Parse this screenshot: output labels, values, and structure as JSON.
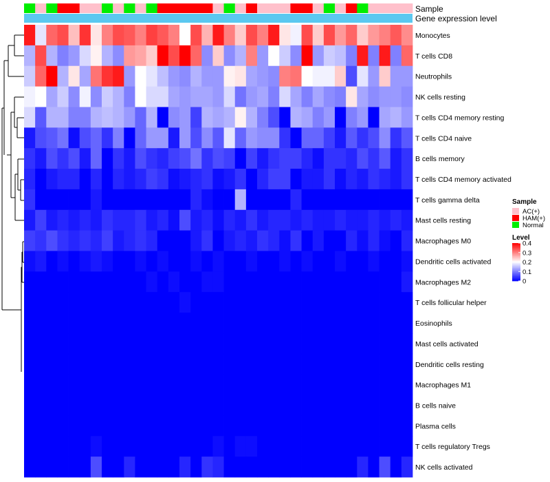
{
  "chart_data": {
    "type": "heatmap",
    "annotation_rows": [
      "Sample",
      "Gene expression level"
    ],
    "sample_groups": [
      "Normal",
      "AC(+)",
      "Normal",
      "HAM(+)",
      "HAM(+)",
      "AC(+)",
      "AC(+)",
      "Normal",
      "AC(+)",
      "Normal",
      "AC(+)",
      "Normal",
      "HAM(+)",
      "HAM(+)",
      "HAM(+)",
      "HAM(+)",
      "HAM(+)",
      "AC(+)",
      "Normal",
      "AC(+)",
      "HAM(+)",
      "AC(+)",
      "AC(+)",
      "AC(+)",
      "HAM(+)",
      "HAM(+)",
      "AC(+)",
      "Normal",
      "AC(+)",
      "HAM(+)",
      "Normal",
      "AC(+)",
      "AC(+)",
      "AC(+)",
      "AC(+)"
    ],
    "rows": [
      "Monocytes",
      "T cells CD8",
      "Neutrophils",
      "NK cells resting",
      "T cells CD4 memory resting",
      "T cells CD4 naive",
      "B cells memory",
      "T cells CD4 memory activated",
      "T cells gamma delta",
      "Mast cells resting",
      "Macrophages M0",
      "Dendritic cells activated",
      "Macrophages M2",
      "T cells follicular helper",
      "Eosinophils",
      "Mast cells activated",
      "Dendritic cells resting",
      "Macrophages M1",
      "B cells naive",
      "Plasma cells",
      "T cells regulatory  Tregs",
      "NK cells activated"
    ],
    "values": [
      [
        0.38,
        0.18,
        0.32,
        0.34,
        0.25,
        0.36,
        0.22,
        0.3,
        0.34,
        0.33,
        0.3,
        0.35,
        0.33,
        0.3,
        0.2,
        0.34,
        0.26,
        0.38,
        0.3,
        0.24,
        0.34,
        0.3,
        0.38,
        0.22,
        0.19,
        0.34,
        0.24,
        0.34,
        0.28,
        0.32,
        0.24,
        0.28,
        0.3,
        0.33,
        0.29
      ],
      [
        0.14,
        0.34,
        0.14,
        0.1,
        0.12,
        0.17,
        0.21,
        0.14,
        0.11,
        0.28,
        0.27,
        0.24,
        0.4,
        0.34,
        0.4,
        0.32,
        0.11,
        0.24,
        0.11,
        0.14,
        0.3,
        0.12,
        0.2,
        0.16,
        0.11,
        0.4,
        0.12,
        0.16,
        0.15,
        0.1,
        0.38,
        0.1,
        0.38,
        0.1,
        0.32
      ],
      [
        0.16,
        0.32,
        0.4,
        0.14,
        0.22,
        0.13,
        0.31,
        0.36,
        0.38,
        0.12,
        0.2,
        0.18,
        0.15,
        0.12,
        0.11,
        0.14,
        0.12,
        0.12,
        0.21,
        0.22,
        0.13,
        0.12,
        0.11,
        0.3,
        0.31,
        0.2,
        0.19,
        0.19,
        0.24,
        0.06,
        0.18,
        0.12,
        0.24,
        0.12,
        0.12
      ],
      [
        0.19,
        0.2,
        0.13,
        0.16,
        0.11,
        0.19,
        0.11,
        0.16,
        0.14,
        0.1,
        0.2,
        0.17,
        0.17,
        0.13,
        0.12,
        0.13,
        0.13,
        0.12,
        0.17,
        0.09,
        0.12,
        0.13,
        0.1,
        0.17,
        0.13,
        0.1,
        0.13,
        0.11,
        0.1,
        0.22,
        0.13,
        0.11,
        0.12,
        0.12,
        0.11
      ],
      [
        0.17,
        0.07,
        0.14,
        0.14,
        0.1,
        0.1,
        0.14,
        0.15,
        0.14,
        0.12,
        0.08,
        0.14,
        0.0,
        0.11,
        0.12,
        0.05,
        0.14,
        0.13,
        0.14,
        0.21,
        0.14,
        0.1,
        0.06,
        0.0,
        0.14,
        0.13,
        0.1,
        0.12,
        0.0,
        0.1,
        0.12,
        0.0,
        0.13,
        0.14,
        0.12
      ],
      [
        0.02,
        0.06,
        0.07,
        0.09,
        0.01,
        0.06,
        0.08,
        0.04,
        0.1,
        0.0,
        0.08,
        0.12,
        0.12,
        0.02,
        0.12,
        0.06,
        0.11,
        0.07,
        0.18,
        0.08,
        0.12,
        0.11,
        0.11,
        0.04,
        0.0,
        0.08,
        0.08,
        0.05,
        0.02,
        0.07,
        0.04,
        0.06,
        0.11,
        0.04,
        0.07
      ],
      [
        0.04,
        0.02,
        0.06,
        0.04,
        0.06,
        0.02,
        0.08,
        0.0,
        0.04,
        0.02,
        0.06,
        0.04,
        0.03,
        0.05,
        0.06,
        0.09,
        0.04,
        0.06,
        0.05,
        0.0,
        0.05,
        0.02,
        0.04,
        0.05,
        0.05,
        0.03,
        0.01,
        0.04,
        0.04,
        0.03,
        0.06,
        0.04,
        0.07,
        0.02,
        0.04
      ],
      [
        0.03,
        0.0,
        0.02,
        0.03,
        0.03,
        0.0,
        0.03,
        0.0,
        0.03,
        0.02,
        0.03,
        0.05,
        0.04,
        0.01,
        0.02,
        0.03,
        0.04,
        0.01,
        0.02,
        0.04,
        0.0,
        0.03,
        0.05,
        0.05,
        0.0,
        0.02,
        0.02,
        0.04,
        0.01,
        0.03,
        0.02,
        0.04,
        0.03,
        0.02,
        0.04
      ],
      [
        0.04,
        0.0,
        0.0,
        0.0,
        0.0,
        0.0,
        0.02,
        0.0,
        0.0,
        0.0,
        0.0,
        0.0,
        0.0,
        0.0,
        0.0,
        0.03,
        0.01,
        0.0,
        0.0,
        0.14,
        0.0,
        0.0,
        0.0,
        0.0,
        0.03,
        0.0,
        0.0,
        0.0,
        0.0,
        0.0,
        0.0,
        0.0,
        0.0,
        0.0,
        0.0
      ],
      [
        0.02,
        0.05,
        0.02,
        0.03,
        0.02,
        0.03,
        0.02,
        0.04,
        0.03,
        0.03,
        0.04,
        0.02,
        0.03,
        0.01,
        0.06,
        0.02,
        0.03,
        0.01,
        0.03,
        0.02,
        0.04,
        0.02,
        0.03,
        0.03,
        0.02,
        0.03,
        0.02,
        0.02,
        0.03,
        0.02,
        0.02,
        0.03,
        0.02,
        0.03,
        0.02
      ],
      [
        0.05,
        0.04,
        0.06,
        0.04,
        0.03,
        0.04,
        0.03,
        0.05,
        0.02,
        0.03,
        0.04,
        0.03,
        0.0,
        0.0,
        0.0,
        0.02,
        0.04,
        0.0,
        0.02,
        0.03,
        0.02,
        0.04,
        0.03,
        0.01,
        0.04,
        0.0,
        0.02,
        0.0,
        0.0,
        0.03,
        0.01,
        0.03,
        0.01,
        0.0,
        0.03
      ],
      [
        0.01,
        0.02,
        0.0,
        0.01,
        0.0,
        0.01,
        0.02,
        0.01,
        0.0,
        0.0,
        0.01,
        0.0,
        0.01,
        0.0,
        0.0,
        0.01,
        0.0,
        0.01,
        0.0,
        0.0,
        0.01,
        0.0,
        0.0,
        0.01,
        0.0,
        0.01,
        0.0,
        0.0,
        0.01,
        0.0,
        0.0,
        0.01,
        0.0,
        0.0,
        0.01
      ],
      [
        0.0,
        0.0,
        0.0,
        0.0,
        0.0,
        0.0,
        0.0,
        0.0,
        0.0,
        0.0,
        0.0,
        0.01,
        0.0,
        0.01,
        0.0,
        0.0,
        0.01,
        0.01,
        0.0,
        0.0,
        0.0,
        0.0,
        0.0,
        0.0,
        0.0,
        0.0,
        0.0,
        0.0,
        0.0,
        0.0,
        0.0,
        0.0,
        0.0,
        0.0,
        0.02
      ],
      [
        0.0,
        0.0,
        0.0,
        0.0,
        0.0,
        0.0,
        0.0,
        0.0,
        0.0,
        0.0,
        0.0,
        0.0,
        0.0,
        0.0,
        0.01,
        0.0,
        0.0,
        0.0,
        0.0,
        0.0,
        0.0,
        0.0,
        0.0,
        0.0,
        0.0,
        0.0,
        0.0,
        0.0,
        0.0,
        0.0,
        0.0,
        0.0,
        0.0,
        0.0,
        0.0
      ],
      [
        0.0,
        0.0,
        0.0,
        0.0,
        0.0,
        0.0,
        0.0,
        0.0,
        0.0,
        0.0,
        0.0,
        0.0,
        0.0,
        0.0,
        0.0,
        0.0,
        0.0,
        0.0,
        0.0,
        0.0,
        0.0,
        0.0,
        0.0,
        0.0,
        0.0,
        0.0,
        0.0,
        0.0,
        0.0,
        0.0,
        0.0,
        0.0,
        0.0,
        0.0,
        0.0
      ],
      [
        0.0,
        0.0,
        0.0,
        0.0,
        0.0,
        0.0,
        0.0,
        0.0,
        0.0,
        0.0,
        0.0,
        0.0,
        0.0,
        0.0,
        0.0,
        0.0,
        0.0,
        0.0,
        0.0,
        0.0,
        0.0,
        0.0,
        0.0,
        0.0,
        0.0,
        0.0,
        0.0,
        0.0,
        0.0,
        0.0,
        0.0,
        0.0,
        0.0,
        0.0,
        0.0
      ],
      [
        0.0,
        0.0,
        0.0,
        0.0,
        0.0,
        0.0,
        0.0,
        0.0,
        0.0,
        0.0,
        0.0,
        0.0,
        0.0,
        0.0,
        0.0,
        0.0,
        0.0,
        0.0,
        0.0,
        0.0,
        0.0,
        0.0,
        0.0,
        0.0,
        0.0,
        0.0,
        0.0,
        0.0,
        0.0,
        0.0,
        0.0,
        0.0,
        0.0,
        0.0,
        0.0
      ],
      [
        0.0,
        0.0,
        0.0,
        0.0,
        0.0,
        0.0,
        0.0,
        0.0,
        0.0,
        0.0,
        0.0,
        0.0,
        0.0,
        0.0,
        0.0,
        0.0,
        0.0,
        0.0,
        0.0,
        0.0,
        0.0,
        0.0,
        0.0,
        0.0,
        0.0,
        0.0,
        0.0,
        0.0,
        0.0,
        0.0,
        0.0,
        0.0,
        0.0,
        0.0,
        0.0
      ],
      [
        0.0,
        0.0,
        0.0,
        0.0,
        0.0,
        0.0,
        0.0,
        0.0,
        0.0,
        0.0,
        0.0,
        0.0,
        0.0,
        0.0,
        0.0,
        0.0,
        0.0,
        0.0,
        0.0,
        0.0,
        0.0,
        0.0,
        0.0,
        0.0,
        0.0,
        0.0,
        0.0,
        0.0,
        0.0,
        0.0,
        0.0,
        0.0,
        0.0,
        0.0,
        0.0
      ],
      [
        0.0,
        0.0,
        0.0,
        0.0,
        0.0,
        0.0,
        0.0,
        0.0,
        0.0,
        0.0,
        0.0,
        0.0,
        0.0,
        0.0,
        0.0,
        0.0,
        0.0,
        0.0,
        0.0,
        0.0,
        0.0,
        0.0,
        0.0,
        0.0,
        0.0,
        0.0,
        0.0,
        0.0,
        0.0,
        0.0,
        0.0,
        0.0,
        0.0,
        0.0,
        0.0
      ],
      [
        0.0,
        0.0,
        0.0,
        0.0,
        0.0,
        0.0,
        0.01,
        0.0,
        0.0,
        0.0,
        0.0,
        0.0,
        0.0,
        0.0,
        0.0,
        0.0,
        0.0,
        0.01,
        0.0,
        0.01,
        0.01,
        0.0,
        0.0,
        0.0,
        0.0,
        0.0,
        0.0,
        0.0,
        0.0,
        0.0,
        0.0,
        0.0,
        0.0,
        0.0,
        0.0
      ],
      [
        0.0,
        0.0,
        0.0,
        0.0,
        0.0,
        0.0,
        0.06,
        0.0,
        0.0,
        0.03,
        0.0,
        0.0,
        0.0,
        0.0,
        0.03,
        0.0,
        0.04,
        0.03,
        0.0,
        0.0,
        0.0,
        0.0,
        0.0,
        0.0,
        0.0,
        0.0,
        0.0,
        0.0,
        0.0,
        0.0,
        0.03,
        0.0,
        0.06,
        0.0,
        0.03
      ]
    ],
    "gene_expression_level_color": "#5bc8f0",
    "legend": {
      "sample_title": "Sample",
      "sample_entries": [
        {
          "label": "AC(+)",
          "color": "#ffc0cb"
        },
        {
          "label": "HAM(+)",
          "color": "#ff0000"
        },
        {
          "label": "Normal",
          "color": "#00ee00"
        }
      ],
      "level_title": "Level",
      "level_ticks": [
        "0.4",
        "0.3",
        "0.2",
        "0.1",
        "0"
      ],
      "level_range": [
        0,
        0.4
      ],
      "colors": {
        "low": "#0000ff",
        "mid": "#ffffff",
        "high": "#ff0000"
      }
    }
  }
}
